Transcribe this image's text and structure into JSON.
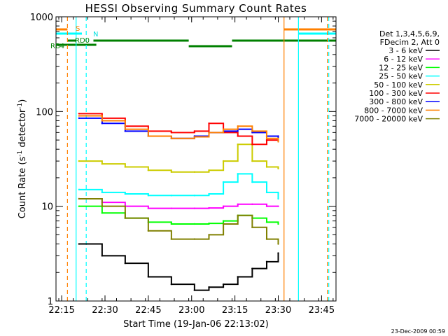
{
  "chart_data": {
    "type": "line",
    "title": "HESSI Observing Summary Count Rates",
    "xlabel": "Start Time (19-Jan-06 22:13:02)",
    "ylabel": "Count Rate (s⁻¹ detector⁻¹)",
    "ylabel_parts": {
      "main": "Count Rate (s",
      "sup1": "-1",
      "mid": " detector",
      "sup2": "-1",
      "end": ")"
    },
    "yscale": "log",
    "ylim": [
      1,
      1000
    ],
    "xlim": [
      "22:13",
      "23:50"
    ],
    "xticks": [
      "22:15",
      "22:30",
      "22:45",
      "23:00",
      "23:15",
      "23:30",
      "23:45"
    ],
    "yticks": [
      "1",
      "10",
      "100",
      "1000"
    ],
    "grid": false,
    "legend_position": "right",
    "legend_header": [
      "Det 1,3,4,5,6,9,",
      "FDecim 2, Att 0"
    ],
    "series": [
      {
        "name": "3 - 6 keV",
        "color": "#000000",
        "values": [
          4,
          3,
          2.5,
          1.8,
          1.5,
          1.3,
          1.4,
          1.5,
          1.8,
          2.2,
          2.6,
          3.2
        ]
      },
      {
        "name": "6 - 12 keV",
        "color": "#ff00ff",
        "values": [
          12,
          11,
          10,
          9.5,
          9.5,
          9.5,
          9.6,
          10,
          10.5,
          10.5,
          10,
          10
        ]
      },
      {
        "name": "12 - 25 keV",
        "color": "#00ff00",
        "values": [
          10,
          8.5,
          7.5,
          6.8,
          6.5,
          6.5,
          6.6,
          7,
          8,
          7.5,
          6.8,
          6.5
        ]
      },
      {
        "name": "25 - 50 keV",
        "color": "#00ffff",
        "values": [
          15,
          14,
          13.5,
          13,
          13,
          13,
          13.5,
          18,
          22,
          18,
          14,
          12
        ]
      },
      {
        "name": "50 - 100 keV",
        "color": "#cccc00",
        "values": [
          30,
          28,
          26,
          24,
          23,
          23,
          24,
          30,
          45,
          30,
          26,
          25
        ]
      },
      {
        "name": "100 - 300 keV",
        "color": "#ff0000",
        "values": [
          95,
          85,
          70,
          62,
          60,
          62,
          75,
          60,
          55,
          45,
          50,
          55
        ]
      },
      {
        "name": "300 - 800 keV",
        "color": "#0000ff",
        "values": [
          85,
          75,
          62,
          55,
          52,
          55,
          60,
          62,
          65,
          60,
          55,
          50
        ]
      },
      {
        "name": "800 - 7000 keV",
        "color": "#ff8000",
        "values": [
          90,
          80,
          65,
          55,
          52,
          54,
          60,
          65,
          70,
          62,
          52,
          48
        ]
      },
      {
        "name": "7000 - 20000 keV",
        "color": "#808000",
        "values": [
          12,
          10,
          7.5,
          5.5,
          4.5,
          4.5,
          5,
          6.5,
          8,
          6,
          4.5,
          4
        ]
      }
    ],
    "x_sample_times": [
      "22:21",
      "22:29",
      "22:37",
      "22:45",
      "22:53",
      "23:01",
      "23:06",
      "23:11",
      "23:16",
      "23:21",
      "23:26",
      "23:30"
    ],
    "flag_labels": [
      "S",
      "N",
      "RD0",
      "RB4"
    ],
    "footer_date": "23-Dec-2009 00:59"
  }
}
